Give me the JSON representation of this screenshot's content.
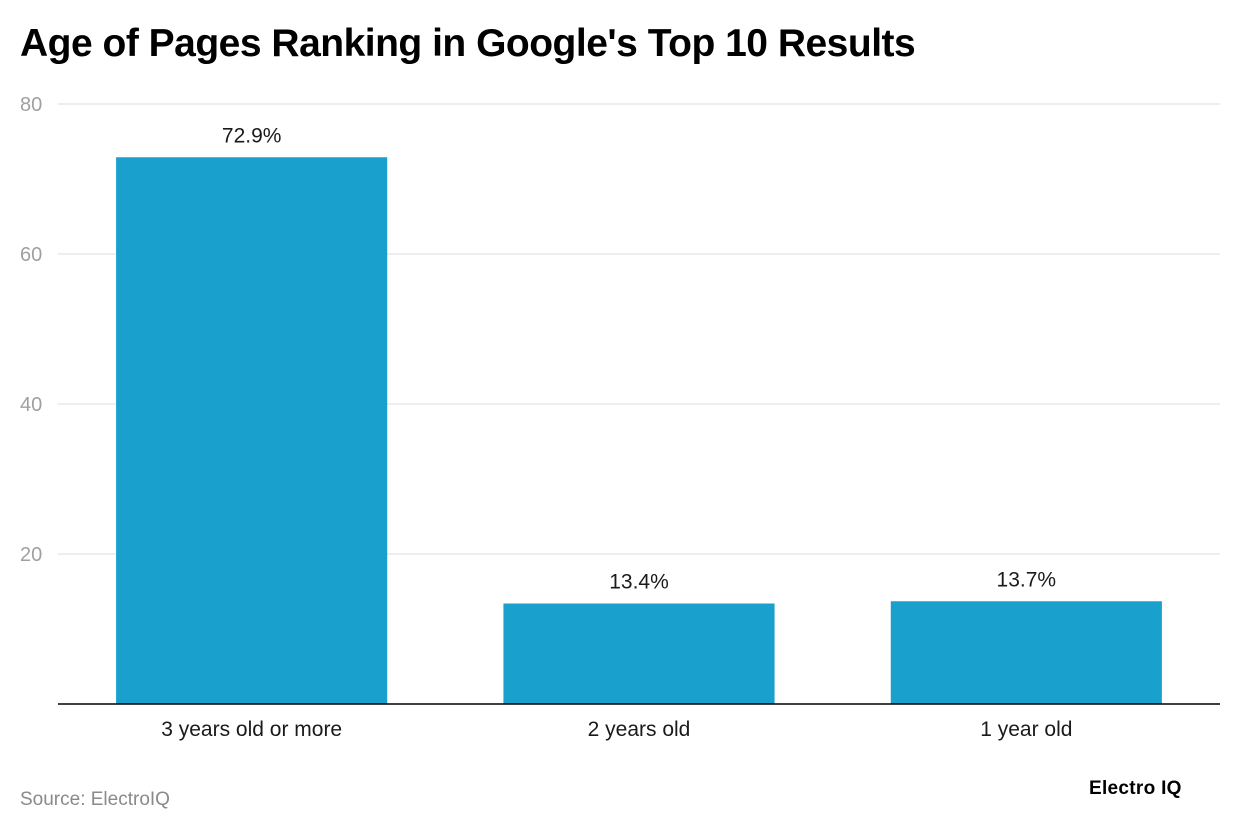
{
  "chart_data": {
    "type": "bar",
    "title": "Age of Pages Ranking in Google's Top 10 Results",
    "categories": [
      "3 years old or more",
      "2 years old",
      "1 year old"
    ],
    "values": [
      72.9,
      13.4,
      13.7
    ],
    "data_labels": [
      "72.9%",
      "13.4%",
      "13.7%"
    ],
    "xlabel": "",
    "ylabel": "",
    "ylim": [
      0,
      80
    ],
    "yticks": [
      20,
      40,
      60,
      80
    ],
    "grid": true,
    "legend": "none",
    "bar_color": "#1aa0cc"
  },
  "footer": {
    "source": "Source: ElectroIQ",
    "brand": "Electro IQ"
  }
}
